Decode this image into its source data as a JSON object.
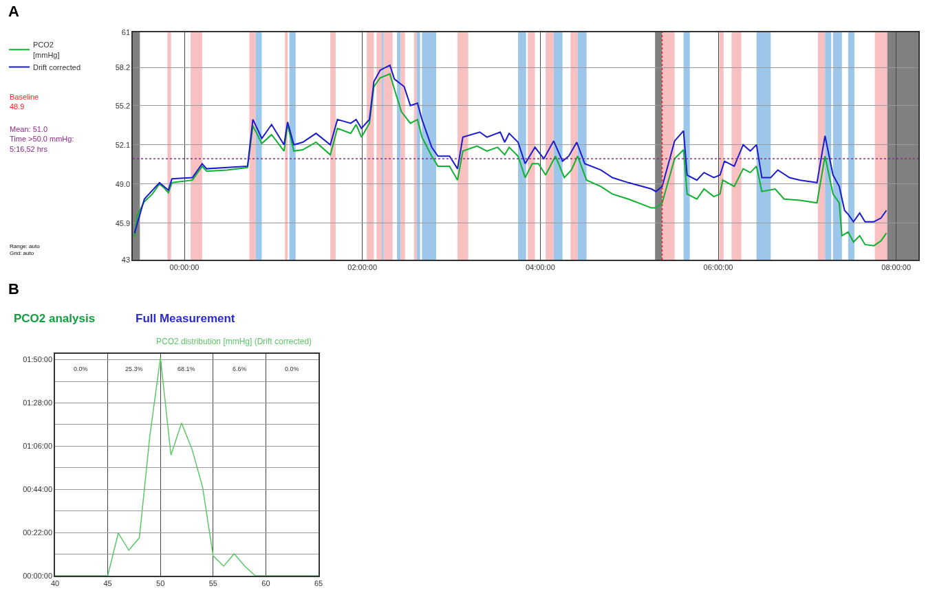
{
  "chart_data": [
    {
      "type": "line",
      "annotations": [
        "A",
        "Baseline\n48.9",
        "Mean: 51.0\nTime >50.0 mmHg:\n5:16,52 hrs",
        "Range: auto",
        "Grid: auto"
      ],
      "series": [
        {
          "name": "PCO2\n[mmHg]",
          "color": "#10b030",
          "x": [
            -0.56,
            -0.53,
            -0.45,
            -0.36,
            -0.28,
            -0.23,
            -0.18,
            -0.14,
            -0.02,
            0.09,
            0.2,
            0.25,
            0.48,
            0.71,
            0.77,
            0.87,
            0.98,
            1.12,
            1.16,
            1.23,
            1.33,
            1.48,
            1.64,
            1.72,
            1.87,
            1.93,
            1.99,
            2.08,
            2.13,
            2.2,
            2.31,
            2.36,
            2.44,
            2.54,
            2.62,
            2.67,
            2.78,
            2.85,
            2.98,
            3.07,
            3.13,
            3.29,
            3.4,
            3.52,
            3.6,
            3.65,
            3.75,
            3.83,
            3.91,
            3.98,
            4.06,
            4.17,
            4.27,
            4.35,
            4.42,
            4.52,
            4.68,
            4.81,
            4.99,
            5.25,
            5.3,
            5.37,
            5.51,
            5.61,
            5.65,
            5.76,
            5.84,
            5.95,
            6.02,
            6.05,
            6.18,
            6.28,
            6.36,
            6.43,
            6.49,
            6.64,
            6.74,
            6.92,
            7.11,
            7.2,
            7.29,
            7.36,
            7.39,
            7.46,
            7.52,
            7.59,
            7.65,
            7.75,
            7.83,
            7.89
          ],
          "values": [
            44.8,
            46.5,
            47.6,
            48.2,
            49.0,
            48.7,
            48.3,
            49.1,
            49.2,
            49.3,
            50.4,
            50.0,
            50.1,
            50.3,
            53.6,
            52.2,
            52.9,
            51.6,
            53.7,
            51.6,
            51.7,
            52.3,
            51.3,
            53.4,
            53.0,
            53.7,
            52.7,
            53.8,
            56.7,
            57.4,
            57.7,
            56.5,
            54.7,
            53.8,
            54.1,
            52.7,
            51.2,
            50.4,
            50.4,
            49.3,
            51.6,
            52.0,
            51.6,
            51.9,
            51.3,
            51.9,
            51.2,
            49.5,
            50.6,
            50.6,
            49.7,
            51.2,
            49.5,
            50.1,
            51.2,
            49.3,
            48.8,
            48.2,
            47.8,
            47.1,
            47.1,
            47.5,
            51.0,
            51.7,
            48.2,
            47.8,
            48.6,
            48.0,
            48.2,
            49.3,
            48.8,
            50.2,
            49.9,
            50.4,
            48.4,
            48.6,
            47.8,
            47.7,
            47.5,
            51.2,
            48.2,
            47.5,
            44.9,
            45.2,
            44.4,
            44.9,
            44.2,
            44.1,
            44.5,
            45.1
          ]
        },
        {
          "name": "Drift corrected",
          "color": "#1a1ad0",
          "x": [
            -0.56,
            -0.45,
            -0.28,
            -0.18,
            -0.14,
            0.09,
            0.2,
            0.25,
            0.71,
            0.77,
            0.87,
            0.98,
            1.12,
            1.16,
            1.23,
            1.33,
            1.48,
            1.64,
            1.72,
            1.87,
            1.93,
            1.99,
            2.08,
            2.13,
            2.2,
            2.31,
            2.36,
            2.47,
            2.54,
            2.62,
            2.67,
            2.78,
            2.85,
            2.98,
            3.07,
            3.13,
            3.32,
            3.4,
            3.55,
            3.6,
            3.65,
            3.75,
            3.83,
            3.94,
            4.04,
            4.15,
            4.25,
            4.32,
            4.41,
            4.5,
            4.68,
            4.81,
            4.99,
            5.25,
            5.3,
            5.37,
            5.51,
            5.61,
            5.65,
            5.76,
            5.84,
            5.95,
            6.02,
            6.07,
            6.18,
            6.28,
            6.36,
            6.43,
            6.49,
            6.59,
            6.67,
            6.8,
            6.92,
            7.11,
            7.2,
            7.29,
            7.36,
            7.42,
            7.46,
            7.52,
            7.59,
            7.65,
            7.75,
            7.83,
            7.89
          ],
          "values": [
            45.1,
            47.8,
            49.1,
            48.5,
            49.4,
            49.5,
            50.6,
            50.2,
            50.4,
            54.1,
            52.6,
            53.7,
            52.1,
            53.9,
            52.1,
            52.3,
            53.0,
            52.1,
            54.1,
            53.8,
            54.1,
            53.4,
            54.1,
            57.1,
            58.0,
            58.4,
            57.3,
            56.7,
            55.2,
            55.4,
            54.1,
            51.9,
            51.2,
            51.2,
            50.2,
            52.7,
            53.1,
            52.7,
            53.1,
            52.3,
            53.0,
            52.3,
            50.6,
            51.9,
            51.0,
            52.4,
            50.8,
            51.2,
            52.3,
            50.6,
            50.1,
            49.5,
            49.1,
            48.6,
            48.4,
            48.8,
            52.4,
            53.2,
            49.7,
            49.3,
            49.9,
            49.5,
            49.7,
            50.8,
            50.4,
            52.1,
            51.6,
            52.1,
            49.5,
            49.5,
            50.1,
            49.5,
            49.3,
            49.1,
            52.8,
            49.7,
            48.8,
            46.9,
            46.6,
            46.0,
            46.7,
            46.0,
            46.0,
            46.3,
            46.9
          ]
        }
      ],
      "xlim": [
        -0.58,
        8.25
      ],
      "xticks": [
        {
          "value": 0,
          "label": "00:00:00"
        },
        {
          "value": 2,
          "label": "02:00:00"
        },
        {
          "value": 4,
          "label": "04:00:00"
        },
        {
          "value": 6,
          "label": "06:00:00"
        },
        {
          "value": 8,
          "label": "08:00:00"
        }
      ],
      "ylim": [
        43,
        61
      ],
      "yticks": [
        43,
        45.9,
        {
          "value": 49,
          "label": "49.0"
        },
        52.1,
        55.2,
        58.2,
        61
      ],
      "grid": true,
      "legend": "left",
      "marker": "none",
      "line_style": "solid",
      "ref_lines": [
        {
          "axis": "y",
          "value": 51.0,
          "color": "#8b2a8b",
          "line_style": "dotted"
        },
        {
          "axis": "x",
          "value": 5.37,
          "color": "#ff2020",
          "line_style": "dotted"
        }
      ],
      "bands": [
        {
          "axis": "x",
          "from": -0.58,
          "to": -0.5,
          "color": "#808080"
        },
        {
          "axis": "x",
          "from": -0.19,
          "to": -0.15,
          "color": "#f8c0c0"
        },
        {
          "axis": "x",
          "from": 0.07,
          "to": 0.2,
          "color": "#f8c0c0"
        },
        {
          "axis": "x",
          "from": 0.73,
          "to": 0.8,
          "color": "#f8c0c0"
        },
        {
          "axis": "x",
          "from": 0.8,
          "to": 0.87,
          "color": "#9cc6ea"
        },
        {
          "axis": "x",
          "from": 1.13,
          "to": 1.16,
          "color": "#f8c0c0"
        },
        {
          "axis": "x",
          "from": 1.18,
          "to": 1.25,
          "color": "#9cc6ea"
        },
        {
          "axis": "x",
          "from": 1.64,
          "to": 1.7,
          "color": "#f8c0c0"
        },
        {
          "axis": "x",
          "from": 2.05,
          "to": 2.13,
          "color": "#f8c0c0"
        },
        {
          "axis": "x",
          "from": 2.16,
          "to": 2.22,
          "color": "#f8c0c0"
        },
        {
          "axis": "x",
          "from": 2.22,
          "to": 2.24,
          "color": "#9cc6ea"
        },
        {
          "axis": "x",
          "from": 2.24,
          "to": 2.34,
          "color": "#f8c0c0"
        },
        {
          "axis": "x",
          "from": 2.39,
          "to": 2.43,
          "color": "#9cc6ea"
        },
        {
          "axis": "x",
          "from": 2.43,
          "to": 2.48,
          "color": "#f8c0c0"
        },
        {
          "axis": "x",
          "from": 2.58,
          "to": 2.61,
          "color": "#f8c0c0"
        },
        {
          "axis": "x",
          "from": 2.61,
          "to": 2.65,
          "color": "#9cc6ea"
        },
        {
          "axis": "x",
          "from": 2.67,
          "to": 2.83,
          "color": "#9cc6ea"
        },
        {
          "axis": "x",
          "from": 3.07,
          "to": 3.19,
          "color": "#f8c0c0"
        },
        {
          "axis": "x",
          "from": 3.75,
          "to": 3.84,
          "color": "#9cc6ea"
        },
        {
          "axis": "x",
          "from": 3.86,
          "to": 3.94,
          "color": "#f8c0c0"
        },
        {
          "axis": "x",
          "from": 4.06,
          "to": 4.15,
          "color": "#f8c0c0"
        },
        {
          "axis": "x",
          "from": 4.15,
          "to": 4.25,
          "color": "#9cc6ea"
        },
        {
          "axis": "x",
          "from": 4.34,
          "to": 4.42,
          "color": "#f8c0c0"
        },
        {
          "axis": "x",
          "from": 4.42,
          "to": 4.52,
          "color": "#9cc6ea"
        },
        {
          "axis": "x",
          "from": 5.29,
          "to": 5.37,
          "color": "#808080"
        },
        {
          "axis": "x",
          "from": 5.37,
          "to": 5.51,
          "color": "#f8c0c0"
        },
        {
          "axis": "x",
          "from": 5.61,
          "to": 5.68,
          "color": "#9cc6ea"
        },
        {
          "axis": "x",
          "from": 6.01,
          "to": 6.06,
          "color": "#f8c0c0"
        },
        {
          "axis": "x",
          "from": 6.15,
          "to": 6.26,
          "color": "#f8c0c0"
        },
        {
          "axis": "x",
          "from": 6.43,
          "to": 6.59,
          "color": "#9cc6ea"
        },
        {
          "axis": "x",
          "from": 7.12,
          "to": 7.2,
          "color": "#f8c0c0"
        },
        {
          "axis": "x",
          "from": 7.2,
          "to": 7.27,
          "color": "#9cc6ea"
        },
        {
          "axis": "x",
          "from": 7.29,
          "to": 7.39,
          "color": "#9cc6ea"
        },
        {
          "axis": "x",
          "from": 7.46,
          "to": 7.53,
          "color": "#9cc6ea"
        },
        {
          "axis": "x",
          "from": 7.76,
          "to": 7.9,
          "color": "#f8c0c0"
        },
        {
          "axis": "x",
          "from": 7.9,
          "to": 8.25,
          "color": "#808080"
        }
      ]
    },
    {
      "type": "line",
      "title": "PCO2 analysis",
      "subtitle": "Full Measurement",
      "annotations": [
        "B",
        "PCO2 distribution [mmHg] (Drift corrected)",
        "0.0%",
        "25.3%",
        "68.1%",
        "6.6%",
        "0.0%"
      ],
      "x": [
        40,
        41,
        42,
        43,
        44,
        45,
        46,
        47,
        48,
        49,
        50,
        51,
        52,
        53,
        54,
        55,
        56,
        57,
        58,
        59,
        60,
        61,
        62,
        63,
        64,
        65
      ],
      "series": [
        {
          "color": "#5cc868",
          "values": [
            0,
            0,
            0,
            0,
            0,
            0,
            21.7,
            13,
            19.3,
            71.4,
            111,
            61.4,
            77.8,
            64.4,
            45.2,
            10.2,
            4.9,
            11.2,
            4.9,
            0,
            0,
            0,
            0,
            0,
            0,
            0
          ]
        }
      ],
      "xlim": [
        40,
        65
      ],
      "xticks": [
        40,
        45,
        50,
        55,
        60,
        65
      ],
      "ylim": [
        0,
        113
      ],
      "yticks": [
        {
          "value": 0,
          "label": "00:00:00"
        },
        {
          "value": 11,
          "label": null
        },
        {
          "value": 22,
          "label": "00:22:00"
        },
        {
          "value": 33,
          "label": null
        },
        {
          "value": 44,
          "label": "00:44:00"
        },
        {
          "value": 55,
          "label": null
        },
        {
          "value": 66,
          "label": "01:06:00"
        },
        {
          "value": 77,
          "label": null
        },
        {
          "value": 88,
          "label": "01:28:00"
        },
        {
          "value": 99,
          "label": null
        },
        {
          "value": 110,
          "label": "01:50:00"
        }
      ],
      "grid": true,
      "marker": "none",
      "line_style": "solid"
    }
  ]
}
